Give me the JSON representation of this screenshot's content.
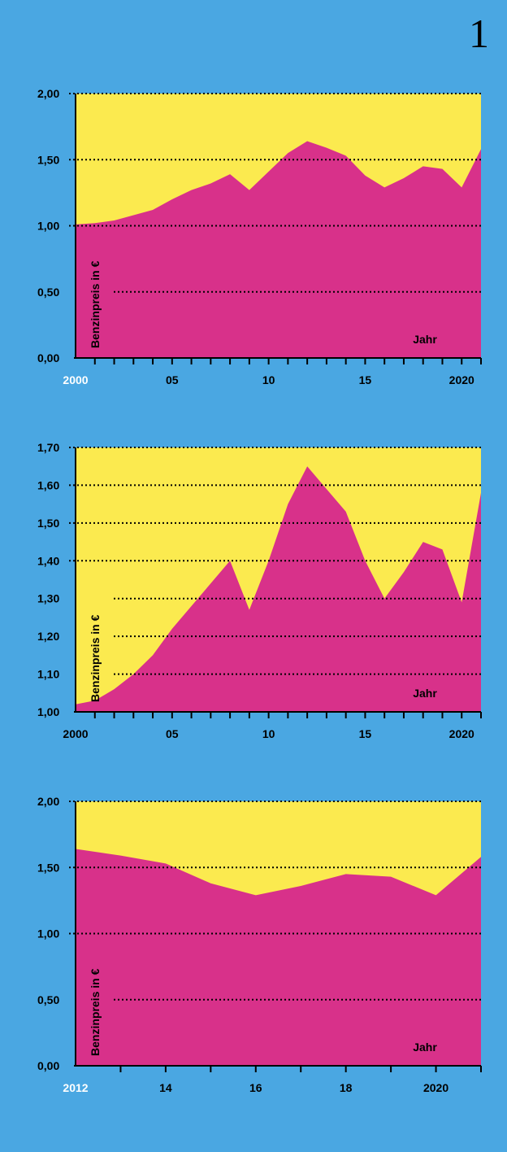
{
  "page_number": "1",
  "colors": {
    "background": "#4aa7e2",
    "plot_bg": "#fbea4f",
    "area": "#d8318a",
    "white_label": "#ffffff"
  },
  "chart_data": [
    {
      "type": "area",
      "x": [
        2000,
        2001,
        2002,
        2003,
        2004,
        2005,
        2006,
        2007,
        2008,
        2009,
        2010,
        2011,
        2012,
        2013,
        2014,
        2015,
        2016,
        2017,
        2018,
        2019,
        2020,
        2021
      ],
      "values": [
        1.01,
        1.02,
        1.04,
        1.08,
        1.12,
        1.2,
        1.27,
        1.32,
        1.39,
        1.27,
        1.41,
        1.55,
        1.64,
        1.59,
        1.53,
        1.38,
        1.29,
        1.36,
        1.45,
        1.43,
        1.29,
        1.58
      ],
      "ylim": [
        0,
        2
      ],
      "yticks": [
        "0,00",
        "0,50",
        "1,00",
        "1,50",
        "2,00"
      ],
      "ytick_values": [
        0,
        0.5,
        1,
        1.5,
        2
      ],
      "xlim": [
        2000,
        2021
      ],
      "xtick_labels": [
        "2000",
        "05",
        "10",
        "15",
        "2020"
      ],
      "xtick_values": [
        2000,
        2005,
        2010,
        2015,
        2020
      ],
      "ylabel": "Benzinpreis in €",
      "xlabel": "Jahr",
      "grid": true
    },
    {
      "type": "area",
      "x": [
        2000,
        2001,
        2002,
        2003,
        2004,
        2005,
        2006,
        2007,
        2008,
        2009,
        2010,
        2011,
        2012,
        2013,
        2014,
        2015,
        2016,
        2017,
        2018,
        2019,
        2020,
        2021
      ],
      "values": [
        1.02,
        1.03,
        1.06,
        1.1,
        1.15,
        1.22,
        1.28,
        1.34,
        1.4,
        1.27,
        1.4,
        1.55,
        1.65,
        1.59,
        1.53,
        1.4,
        1.3,
        1.37,
        1.45,
        1.43,
        1.29,
        1.58
      ],
      "ylim": [
        1.0,
        1.7
      ],
      "yticks": [
        "1,00",
        "1,10",
        "1,20",
        "1,30",
        "1,40",
        "1,50",
        "1,60",
        "1,70"
      ],
      "ytick_values": [
        1.0,
        1.1,
        1.2,
        1.3,
        1.4,
        1.5,
        1.6,
        1.7
      ],
      "xlim": [
        2000,
        2021
      ],
      "xtick_labels": [
        "2000",
        "05",
        "10",
        "15",
        "2020"
      ],
      "xtick_values": [
        2000,
        2005,
        2010,
        2015,
        2020
      ],
      "ylabel": "Benzinpreis in €",
      "xlabel": "Jahr",
      "grid": true
    },
    {
      "type": "area",
      "x": [
        2012,
        2013,
        2014,
        2015,
        2016,
        2017,
        2018,
        2019,
        2020,
        2021
      ],
      "values": [
        1.64,
        1.59,
        1.53,
        1.38,
        1.29,
        1.36,
        1.45,
        1.43,
        1.29,
        1.58
      ],
      "ylim": [
        0,
        2
      ],
      "yticks": [
        "0,00",
        "0,50",
        "1,00",
        "1,50",
        "2,00"
      ],
      "ytick_values": [
        0,
        0.5,
        1,
        1.5,
        2
      ],
      "xlim": [
        2012,
        2021
      ],
      "xtick_labels": [
        "2012",
        "14",
        "16",
        "18",
        "2020"
      ],
      "xtick_values": [
        2012,
        2014,
        2016,
        2018,
        2020
      ],
      "ylabel": "Benzinpreis in €",
      "xlabel": "Jahr",
      "grid": true
    }
  ]
}
